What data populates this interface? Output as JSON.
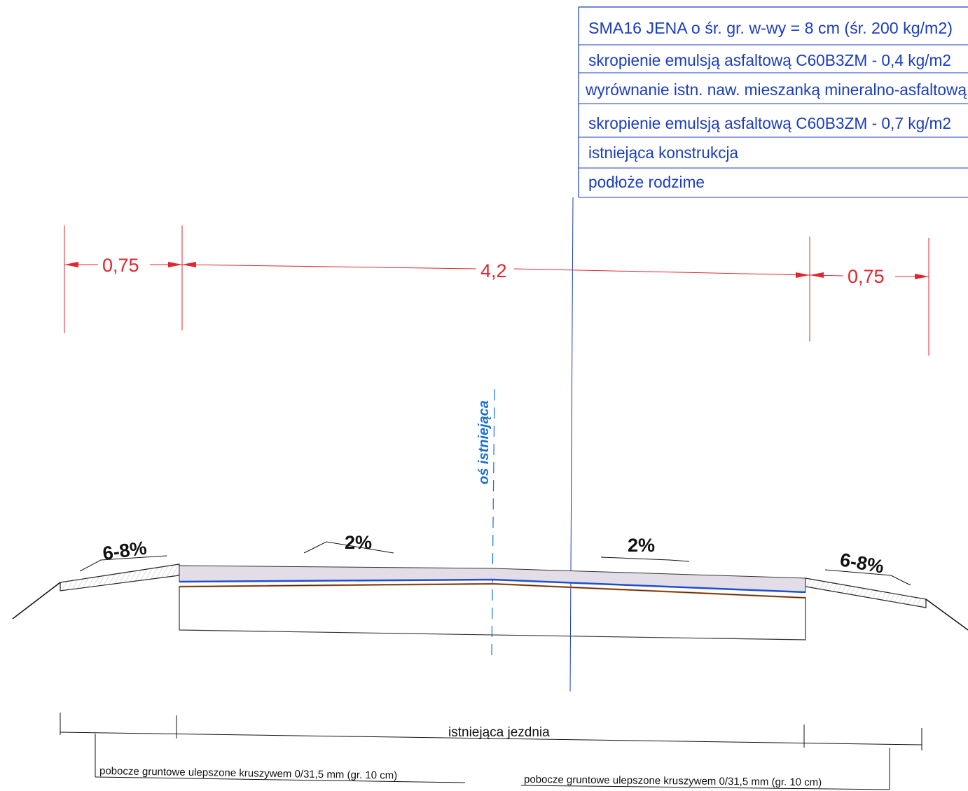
{
  "legend": {
    "color": "#1a3dbf",
    "rows": [
      {
        "text": "SMA16 JENA o śr. gr. w-wy = 8 cm (śr. 200 kg/m2)"
      },
      {
        "text": "skropienie emulsją asfaltową C60B3ZM - 0,4 kg/m2"
      },
      {
        "text": "wyrównanie istn. naw. mieszanką mineralno-asfaltową"
      },
      {
        "text": "skropienie emulsją asfaltową C60B3ZM - 0,7 kg/m2"
      },
      {
        "text": "istniejąca konstrukcja"
      },
      {
        "text": "podłoże rodzime"
      }
    ]
  },
  "dimensions": {
    "color": "#e0262d",
    "left_shoulder": "0,75",
    "carriageway": "4,2",
    "right_shoulder": "0,75"
  },
  "axis": {
    "label": "oś istniejąca",
    "color": "#1a6fd6"
  },
  "slopes": {
    "left_shoulder": "6-8%",
    "left_lane": "2%",
    "right_lane": "2%",
    "right_shoulder": "6-8%"
  },
  "layer_colors": {
    "wearing_course": "#e2dde6",
    "bond_coat": "#1f4fd1",
    "leveling_course": "#f07a2a"
  },
  "bottom": {
    "carriageway_label": "istniejąca jezdnia",
    "left_shoulder_label": "pobocze gruntowe ulepszone kruszywem 0/31,5 mm (gr. 10 ",
    "left_shoulder_unit": "cm)",
    "right_shoulder_label": "pobocze gruntowe ulepszone kruszywem 0/31,5 mm (gr. 10 cm)"
  }
}
